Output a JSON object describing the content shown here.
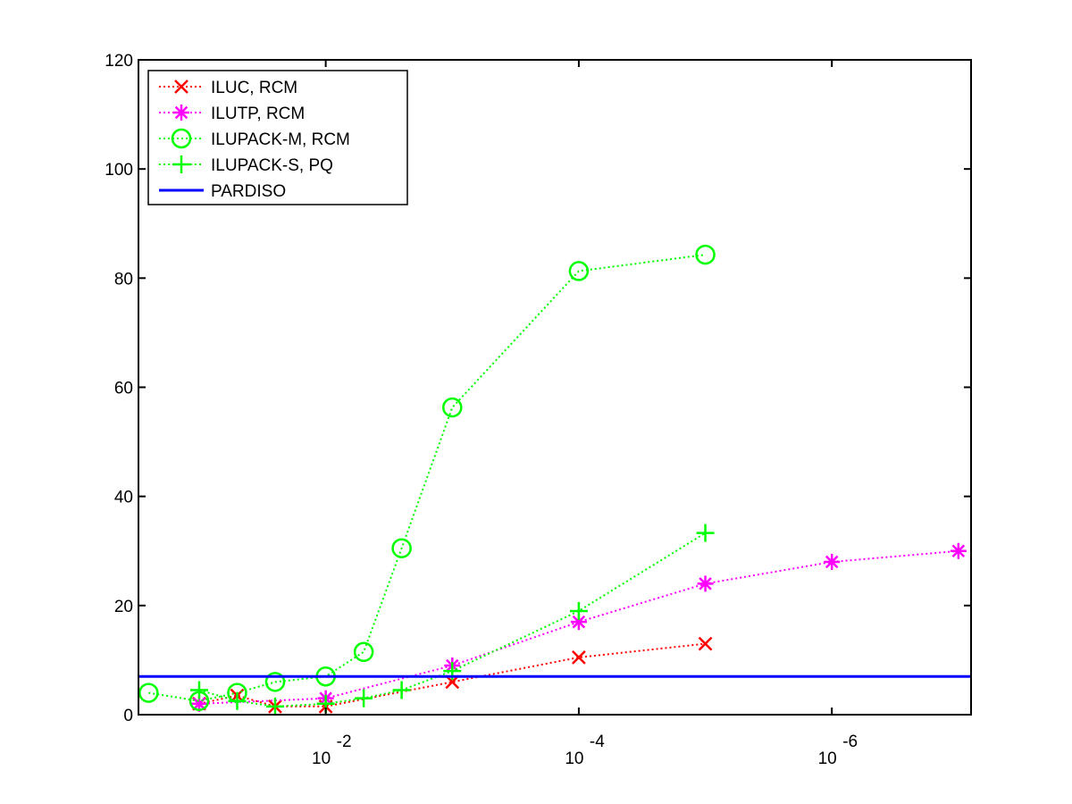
{
  "chart_data": {
    "type": "line",
    "title": "",
    "xlabel": "",
    "ylabel": "",
    "x_scale": "log",
    "x_reversed": true,
    "x_range": [
      0.3,
      8e-08
    ],
    "xlim_exponent": [
      -0.52,
      -7.1
    ],
    "ylim": [
      0,
      120
    ],
    "y_ticks": [
      "0",
      "20",
      "40",
      "60",
      "80",
      "100",
      "120"
    ],
    "x_ticks": [
      {
        "base": "10",
        "exp": "-2",
        "value_exp": -2
      },
      {
        "base": "10",
        "exp": "-4",
        "value_exp": -4
      },
      {
        "base": "10",
        "exp": "-6",
        "value_exp": -6
      }
    ],
    "grid": false,
    "legend_position": "top-left",
    "series": [
      {
        "name": "ILUC, RCM",
        "color": "#ff0000",
        "marker": "x",
        "line_style": "dotted",
        "x_exp": [
          -1,
          -1.3,
          -1.6,
          -2,
          -3,
          -4,
          -5
        ],
        "y": [
          2,
          3.5,
          1.5,
          1.5,
          6,
          10.5,
          13
        ]
      },
      {
        "name": "ILUTP, RCM",
        "color": "#ff00ff",
        "marker": "asterisk",
        "line_style": "dotted",
        "x_exp": [
          -1,
          -2,
          -3,
          -4,
          -5,
          -6,
          -7
        ],
        "y": [
          2,
          3,
          9,
          17,
          24,
          28,
          30
        ]
      },
      {
        "name": "ILUPACK-M, RCM",
        "color": "#00ff00",
        "marker": "circle",
        "line_style": "dotted",
        "x_exp": [
          -0.6,
          -1,
          -1.3,
          -1.6,
          -2,
          -2.3,
          -2.6,
          -3,
          -4,
          -5
        ],
        "y": [
          4,
          2.5,
          4,
          6,
          7,
          11.5,
          30.5,
          56.3,
          81.3,
          84.3
        ]
      },
      {
        "name": "ILUPACK-S, PQ",
        "color": "#00ff00",
        "marker": "plus",
        "line_style": "dotted",
        "x_exp": [
          -1,
          -1.3,
          -1.6,
          -2,
          -2.3,
          -2.6,
          -3,
          -4,
          -5
        ],
        "y": [
          4.5,
          2.5,
          1.5,
          2,
          3,
          4.5,
          8,
          19,
          33.3
        ]
      },
      {
        "name": "PARDISO",
        "color": "#0000ff",
        "marker": "none",
        "line_style": "solid",
        "x_exp": [
          -0.52,
          -7.1
        ],
        "y": [
          7,
          7
        ]
      }
    ]
  }
}
